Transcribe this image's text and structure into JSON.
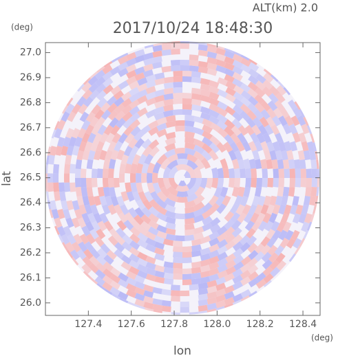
{
  "chart_data": {
    "type": "radar-ppi",
    "title": "2017/10/24 18:48:30",
    "subtitle": "ALT(km) 2.0",
    "x_label": "lon",
    "y_label": "lat",
    "x_unit": "(deg)",
    "y_unit": "(deg)",
    "xlim": [
      127.2,
      128.48
    ],
    "ylim": [
      25.95,
      27.04
    ],
    "xticks": [
      127.4,
      127.6,
      127.8,
      {
        "value": 128,
        "label": "128.0"
      },
      128.2,
      128.4
    ],
    "yticks": [
      {
        "value": 26,
        "label": "26.0"
      },
      26.1,
      26.2,
      26.3,
      26.4,
      26.5,
      26.6,
      26.7,
      26.8,
      26.9,
      {
        "value": 27,
        "label": "27.0"
      }
    ],
    "colors": [
      "#f6b3b3",
      "#b9b9f6"
    ]
  }
}
